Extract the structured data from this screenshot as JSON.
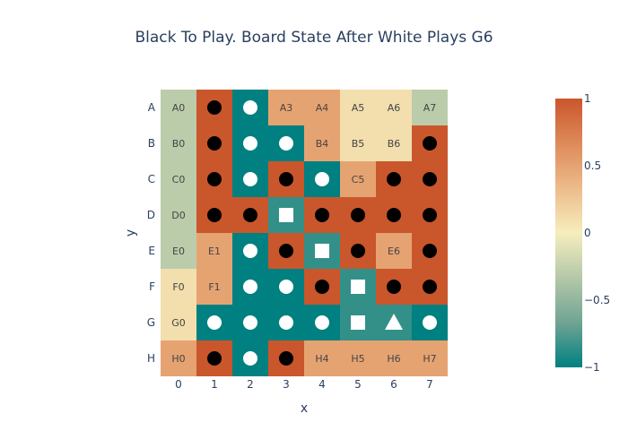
{
  "title": "Black To Play. Board State After White Plays G6",
  "axes": {
    "xlabel": "x",
    "ylabel": "y",
    "x_ticks": [
      "0",
      "1",
      "2",
      "3",
      "4",
      "5",
      "6",
      "7"
    ],
    "y_ticks": [
      "A",
      "B",
      "C",
      "D",
      "E",
      "F",
      "G",
      "H"
    ]
  },
  "colorbar": {
    "ticks": [
      "1",
      "0.5",
      "0",
      "−0.5",
      "−1"
    ],
    "tick_values": [
      1,
      0.5,
      0,
      -0.5,
      -1
    ],
    "colorscale": [
      "#008080",
      "#70a494",
      "#b4c8a8",
      "#f6edbd",
      "#edbb8a",
      "#de8a5a",
      "#ca562c"
    ]
  },
  "colors": {
    "black_stone": "#000000",
    "white_stone": "#ffffff"
  },
  "board": {
    "rows": [
      "A",
      "B",
      "C",
      "D",
      "E",
      "F",
      "G",
      "H"
    ],
    "cells": [
      [
        {
          "v": -0.3,
          "label": "A0"
        },
        {
          "v": 1,
          "stone": "black"
        },
        {
          "v": -1,
          "stone": "white"
        },
        {
          "v": 0.5,
          "label": "A3"
        },
        {
          "v": 0.5,
          "label": "A4"
        },
        {
          "v": 0.1,
          "label": "A5"
        },
        {
          "v": 0.1,
          "label": "A6"
        },
        {
          "v": -0.3,
          "label": "A7"
        }
      ],
      [
        {
          "v": -0.3,
          "label": "B0"
        },
        {
          "v": 1,
          "stone": "black"
        },
        {
          "v": -1,
          "stone": "white"
        },
        {
          "v": -1,
          "stone": "white"
        },
        {
          "v": 0.5,
          "label": "B4"
        },
        {
          "v": 0.1,
          "label": "B5"
        },
        {
          "v": 0.1,
          "label": "B6"
        },
        {
          "v": 1,
          "stone": "black"
        }
      ],
      [
        {
          "v": -0.3,
          "label": "C0"
        },
        {
          "v": 1,
          "stone": "black"
        },
        {
          "v": -1,
          "stone": "white"
        },
        {
          "v": 1,
          "stone": "black"
        },
        {
          "v": -1,
          "stone": "white"
        },
        {
          "v": 0.5,
          "label": "C5"
        },
        {
          "v": 1,
          "stone": "black"
        },
        {
          "v": 1,
          "stone": "black"
        }
      ],
      [
        {
          "v": -0.3,
          "label": "D0"
        },
        {
          "v": 1,
          "stone": "black"
        },
        {
          "v": 1,
          "stone": "black"
        },
        {
          "v": -0.85,
          "stone": "white",
          "marker": "square"
        },
        {
          "v": 1,
          "stone": "black"
        },
        {
          "v": 1,
          "stone": "black"
        },
        {
          "v": 1,
          "stone": "black"
        },
        {
          "v": 1,
          "stone": "black"
        }
      ],
      [
        {
          "v": -0.3,
          "label": "E0"
        },
        {
          "v": 0.5,
          "label": "E1"
        },
        {
          "v": -1,
          "stone": "white"
        },
        {
          "v": 1,
          "stone": "black"
        },
        {
          "v": -0.85,
          "stone": "white",
          "marker": "square"
        },
        {
          "v": 1,
          "stone": "black"
        },
        {
          "v": 0.5,
          "label": "E6"
        },
        {
          "v": 1,
          "stone": "black"
        }
      ],
      [
        {
          "v": 0.1,
          "label": "F0"
        },
        {
          "v": 0.5,
          "label": "F1"
        },
        {
          "v": -1,
          "stone": "white"
        },
        {
          "v": -1,
          "stone": "white"
        },
        {
          "v": 1,
          "stone": "black"
        },
        {
          "v": -0.85,
          "stone": "white",
          "marker": "square"
        },
        {
          "v": 1,
          "stone": "black"
        },
        {
          "v": 1,
          "stone": "black"
        }
      ],
      [
        {
          "v": 0.1,
          "label": "G0"
        },
        {
          "v": -1,
          "stone": "white"
        },
        {
          "v": -1,
          "stone": "white"
        },
        {
          "v": -1,
          "stone": "white"
        },
        {
          "v": -1,
          "stone": "white"
        },
        {
          "v": -0.85,
          "stone": "white",
          "marker": "square"
        },
        {
          "v": -0.85,
          "stone": "white",
          "marker": "triangle"
        },
        {
          "v": -1,
          "stone": "white"
        }
      ],
      [
        {
          "v": 0.5,
          "label": "H0"
        },
        {
          "v": 1,
          "stone": "black"
        },
        {
          "v": -1,
          "stone": "white"
        },
        {
          "v": 1,
          "stone": "black"
        },
        {
          "v": 0.5,
          "label": "H4"
        },
        {
          "v": 0.5,
          "label": "H5"
        },
        {
          "v": 0.5,
          "label": "H6"
        },
        {
          "v": 0.5,
          "label": "H7"
        }
      ]
    ]
  }
}
